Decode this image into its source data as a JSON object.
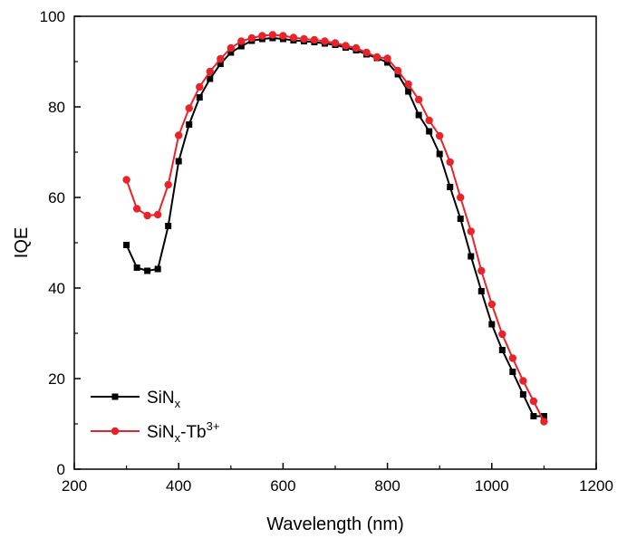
{
  "chart_data": {
    "type": "line",
    "xlabel": "Wavelength (nm)",
    "ylabel": "IQE",
    "xlim": [
      200,
      1200
    ],
    "ylim": [
      0,
      100
    ],
    "x_ticks": [
      200,
      400,
      600,
      800,
      1000,
      1200
    ],
    "y_ticks": [
      0,
      20,
      40,
      60,
      80,
      100
    ],
    "grid": false,
    "legend_position": "bottom-left",
    "series": [
      {
        "name": "SiNx",
        "name_base": "SiN",
        "name_sub": "x",
        "name_sup": "",
        "color": "#000000",
        "marker": "square",
        "x": [
          300,
          320,
          340,
          360,
          380,
          400,
          420,
          440,
          460,
          480,
          500,
          520,
          540,
          560,
          580,
          600,
          620,
          640,
          660,
          680,
          700,
          720,
          740,
          760,
          780,
          800,
          820,
          840,
          860,
          880,
          900,
          920,
          940,
          960,
          980,
          1000,
          1020,
          1040,
          1060,
          1080,
          1100
        ],
        "y": [
          49.5,
          44.5,
          43.8,
          44.2,
          53.7,
          68,
          76.1,
          82.1,
          86.2,
          89.5,
          92.0,
          93.4,
          94.6,
          95.0,
          95.2,
          95.0,
          94.7,
          94.5,
          94.3,
          94.0,
          93.7,
          93.1,
          92.5,
          91.6,
          90.8,
          89.8,
          87.2,
          83.4,
          78.2,
          74.6,
          69.6,
          62.3,
          55.3,
          47.0,
          39.3,
          32.0,
          26.3,
          21.5,
          16.5,
          11.7,
          11.7
        ]
      },
      {
        "name": "SiNx-Tb3+",
        "name_base": "SiN",
        "name_sub": "x",
        "name_sup": "3+",
        "name_mid": "-Tb",
        "color": "#e8242a",
        "marker": "circle",
        "x": [
          300,
          320,
          340,
          360,
          380,
          400,
          420,
          440,
          460,
          480,
          500,
          520,
          540,
          560,
          580,
          600,
          620,
          640,
          660,
          680,
          700,
          720,
          740,
          760,
          780,
          800,
          820,
          840,
          860,
          880,
          900,
          920,
          940,
          960,
          980,
          1000,
          1020,
          1040,
          1060,
          1080,
          1100
        ],
        "y": [
          63.9,
          57.5,
          56,
          56.2,
          62.8,
          73.7,
          79.7,
          84.4,
          87.8,
          90.6,
          93,
          94.5,
          95.2,
          95.7,
          95.9,
          95.7,
          95.3,
          95.0,
          94.8,
          94.5,
          94.1,
          93.5,
          93.0,
          92.0,
          91.0,
          90.7,
          88.0,
          85.0,
          81.6,
          77.0,
          73.6,
          67.8,
          60.0,
          52.5,
          43.8,
          36.4,
          29.8,
          24.5,
          19.5,
          15.0,
          10.5
        ]
      }
    ]
  }
}
